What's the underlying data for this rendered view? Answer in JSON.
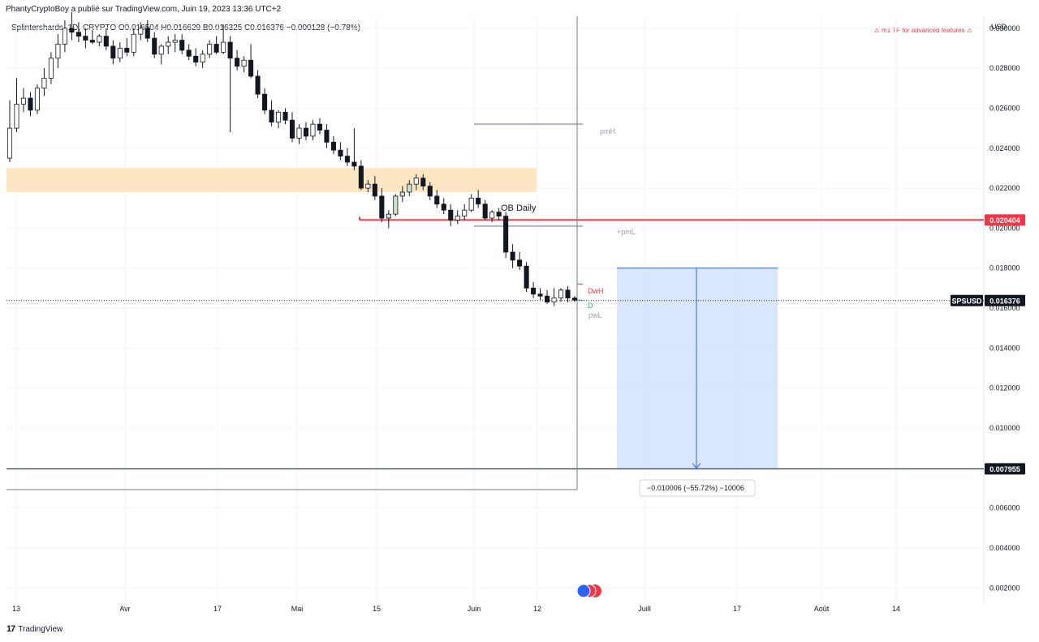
{
  "header": {
    "published": "PhantyCryptoBoy a publié sur TradingView.com, Juin 19, 2023 13:36 UTC+2",
    "legend": "Splintershards, 1D, CRYPTO  O0.016504  H0.016629  B0.016325  C0.016376  −0.000128 (−0.78%)",
    "warning": "⚠ m1 TF for advanced features ⚠",
    "currency": "USD"
  },
  "footer": {
    "brand": "TradingView",
    "logo": "tradingview-logo-icon"
  },
  "labels": {
    "pmH": "pmH",
    "pmL": "+pmL",
    "dwH": "DwH",
    "d": "D",
    "pwL": "pwL",
    "ob": "OB Daily",
    "measure": "−0.010006 (−55.72%) −10006"
  },
  "chart_data": {
    "type": "candlestick",
    "symbol": "SPSUSD",
    "interval": "1D",
    "y_ticks": [
      "0.030000",
      "0.028000",
      "0.026000",
      "0.024000",
      "0.022000",
      "0.020000",
      "0.018000",
      "0.016000",
      "0.014000",
      "0.012000",
      "0.010000",
      "0.008000",
      "0.006000",
      "0.004000",
      "0.002000"
    ],
    "ylim": [
      0.0012,
      0.0306
    ],
    "x_ticks": [
      "13",
      "Avr",
      "17",
      "Mai",
      "15",
      "Juin",
      "12",
      "Juill",
      "17",
      "Août",
      "14"
    ],
    "price_labels": [
      {
        "text": "0.020404",
        "value": 0.020404,
        "color": "#f23645"
      },
      {
        "text": "SPSUSD",
        "value": 0.016376,
        "color": "#131722"
      },
      {
        "text": "0.016376",
        "value": 0.016376,
        "color": "#131722"
      },
      {
        "text": "0.007955",
        "value": 0.007955,
        "color": "#131722"
      }
    ],
    "zones": {
      "ob_daily": {
        "label": "OB Daily",
        "low": 0.0218,
        "high": 0.023
      },
      "resistance": 0.020404,
      "target": 0.007955,
      "pmH": 0.0252,
      "pmL": 0.0201,
      "short_entry": 0.018
    },
    "candles": [
      [
        0.0235,
        0.0264,
        0.0233,
        0.025
      ],
      [
        0.025,
        0.0275,
        0.0248,
        0.0262
      ],
      [
        0.0262,
        0.027,
        0.0258,
        0.0265
      ],
      [
        0.0265,
        0.0268,
        0.0256,
        0.0259
      ],
      [
        0.0259,
        0.0272,
        0.0257,
        0.027
      ],
      [
        0.027,
        0.028,
        0.0266,
        0.0275
      ],
      [
        0.0275,
        0.0288,
        0.0272,
        0.0285
      ],
      [
        0.0285,
        0.0297,
        0.028,
        0.0292
      ],
      [
        0.0292,
        0.0304,
        0.0288,
        0.03
      ],
      [
        0.03,
        0.0308,
        0.0294,
        0.0298
      ],
      [
        0.0298,
        0.0303,
        0.0293,
        0.0296
      ],
      [
        0.0296,
        0.03,
        0.029,
        0.0294
      ],
      [
        0.0294,
        0.0299,
        0.0292,
        0.0293
      ],
      [
        0.0293,
        0.0297,
        0.0291,
        0.0296
      ],
      [
        0.0296,
        0.03,
        0.0289,
        0.0291
      ],
      [
        0.0291,
        0.0294,
        0.0282,
        0.0285
      ],
      [
        0.0285,
        0.0293,
        0.0283,
        0.029
      ],
      [
        0.029,
        0.0295,
        0.0286,
        0.0288
      ],
      [
        0.0288,
        0.03,
        0.0286,
        0.0297
      ],
      [
        0.0297,
        0.0303,
        0.0294,
        0.03
      ],
      [
        0.03,
        0.0304,
        0.0293,
        0.0295
      ],
      [
        0.0295,
        0.0298,
        0.0285,
        0.0287
      ],
      [
        0.0287,
        0.0292,
        0.0282,
        0.0291
      ],
      [
        0.0291,
        0.0296,
        0.0287,
        0.0293
      ],
      [
        0.0293,
        0.0297,
        0.0288,
        0.0294
      ],
      [
        0.0294,
        0.0297,
        0.0287,
        0.0289
      ],
      [
        0.0289,
        0.0292,
        0.0284,
        0.0286
      ],
      [
        0.0286,
        0.029,
        0.0281,
        0.0283
      ],
      [
        0.0283,
        0.0289,
        0.028,
        0.0287
      ],
      [
        0.0287,
        0.0294,
        0.0285,
        0.0292
      ],
      [
        0.0292,
        0.0296,
        0.0287,
        0.0288
      ],
      [
        0.0288,
        0.0302,
        0.0287,
        0.0293
      ],
      [
        0.0293,
        0.0296,
        0.0248,
        0.0285
      ],
      [
        0.0285,
        0.0289,
        0.0279,
        0.0281
      ],
      [
        0.0281,
        0.0286,
        0.0278,
        0.0284
      ],
      [
        0.0284,
        0.0292,
        0.0275,
        0.0276
      ],
      [
        0.0276,
        0.0279,
        0.0265,
        0.0267
      ],
      [
        0.0267,
        0.027,
        0.0257,
        0.0259
      ],
      [
        0.0259,
        0.0264,
        0.0251,
        0.0253
      ],
      [
        0.0253,
        0.0259,
        0.025,
        0.0258
      ],
      [
        0.0258,
        0.026,
        0.0252,
        0.0254
      ],
      [
        0.0254,
        0.0258,
        0.0243,
        0.0245
      ],
      [
        0.0245,
        0.0252,
        0.0242,
        0.025
      ],
      [
        0.025,
        0.0253,
        0.0244,
        0.0246
      ],
      [
        0.0246,
        0.0254,
        0.0244,
        0.0252
      ],
      [
        0.0252,
        0.0255,
        0.0247,
        0.0249
      ],
      [
        0.0249,
        0.0252,
        0.024,
        0.0243
      ],
      [
        0.0243,
        0.0246,
        0.0237,
        0.0239
      ],
      [
        0.0239,
        0.0243,
        0.0234,
        0.0236
      ],
      [
        0.0236,
        0.024,
        0.0231,
        0.0233
      ],
      [
        0.0233,
        0.025,
        0.0229,
        0.0231
      ],
      [
        0.0231,
        0.0234,
        0.0219,
        0.022
      ],
      [
        0.022,
        0.0224,
        0.0218,
        0.0222
      ],
      [
        0.0222,
        0.0226,
        0.0214,
        0.0216
      ],
      [
        0.0216,
        0.022,
        0.0203,
        0.0205
      ],
      [
        0.0205,
        0.0209,
        0.02,
        0.0207
      ],
      [
        0.0207,
        0.0217,
        0.0206,
        0.0216
      ],
      [
        0.0216,
        0.0221,
        0.0213,
        0.0218
      ],
      [
        0.0218,
        0.0224,
        0.0216,
        0.0222
      ],
      [
        0.0222,
        0.0227,
        0.0219,
        0.0225
      ],
      [
        0.0225,
        0.0227,
        0.0219,
        0.0221
      ],
      [
        0.0221,
        0.0223,
        0.0214,
        0.0216
      ],
      [
        0.0216,
        0.0219,
        0.021,
        0.0212
      ],
      [
        0.0212,
        0.0215,
        0.0207,
        0.0209
      ],
      [
        0.0209,
        0.0212,
        0.0201,
        0.0204
      ],
      [
        0.0204,
        0.0209,
        0.0202,
        0.0206
      ],
      [
        0.0206,
        0.0212,
        0.0204,
        0.0209
      ],
      [
        0.0209,
        0.0217,
        0.0208,
        0.0215
      ],
      [
        0.0215,
        0.0219,
        0.021,
        0.0212
      ],
      [
        0.0212,
        0.0214,
        0.0204,
        0.0205
      ],
      [
        0.0205,
        0.0209,
        0.0203,
        0.0208
      ],
      [
        0.0208,
        0.021,
        0.0204,
        0.0206
      ],
      [
        0.0206,
        0.0208,
        0.0185,
        0.0188
      ],
      [
        0.0188,
        0.0192,
        0.018,
        0.0184
      ],
      [
        0.0184,
        0.0188,
        0.0179,
        0.0181
      ],
      [
        0.0181,
        0.0183,
        0.0168,
        0.017
      ],
      [
        0.017,
        0.0173,
        0.0165,
        0.0167
      ],
      [
        0.0167,
        0.017,
        0.0164,
        0.0166
      ],
      [
        0.0166,
        0.0169,
        0.0162,
        0.0163
      ],
      [
        0.0163,
        0.017,
        0.0161,
        0.0165
      ],
      [
        0.0165,
        0.017,
        0.0163,
        0.0169
      ],
      [
        0.0169,
        0.0171,
        0.0163,
        0.0165
      ],
      [
        0.0165,
        0.0166,
        0.0163,
        0.0164
      ]
    ]
  }
}
